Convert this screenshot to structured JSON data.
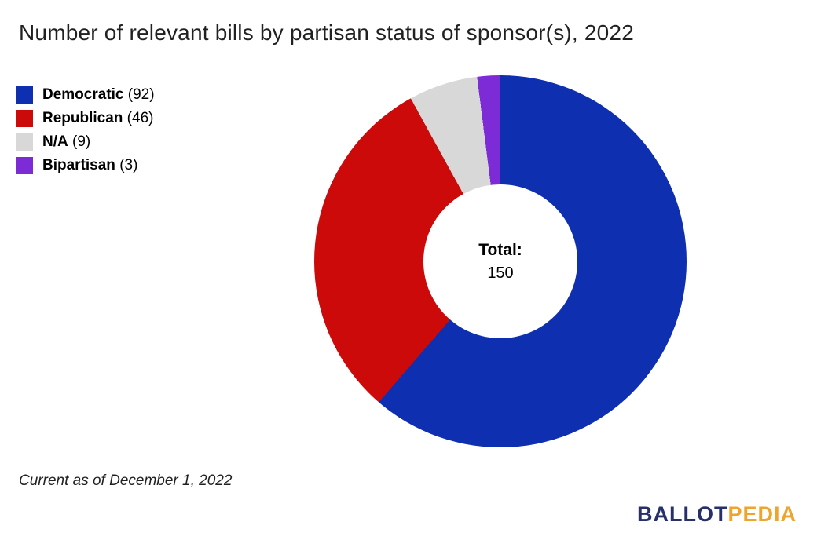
{
  "title": "Number of relevant bills by partisan status of sponsor(s), 2022",
  "legend": {
    "items": [
      {
        "label": "Democratic",
        "count": 92,
        "color": "#0d2fb0"
      },
      {
        "label": "Republican",
        "count": 46,
        "color": "#cc0a0a"
      },
      {
        "label": "N/A",
        "count": 9,
        "color": "#d8d8d8"
      },
      {
        "label": "Bipartisan",
        "count": 3,
        "color": "#7c2bd6"
      }
    ]
  },
  "center": {
    "label": "Total:",
    "value": "150"
  },
  "footer": {
    "note": "Current as of December 1, 2022"
  },
  "logo": {
    "part1": "BALLOT",
    "part2": "PEDIA",
    "color1": "#263069",
    "color2": "#efa42e"
  },
  "chart_data": {
    "type": "pie",
    "subtype": "donut",
    "title": "Number of relevant bills by partisan status of sponsor(s), 2022",
    "categories": [
      "Democratic",
      "Republican",
      "N/A",
      "Bipartisan"
    ],
    "values": [
      92,
      46,
      9,
      3
    ],
    "colors": [
      "#0d2fb0",
      "#cc0a0a",
      "#d8d8d8",
      "#7c2bd6"
    ],
    "total": 150,
    "center_text": [
      "Total:",
      "150"
    ],
    "start_angle_deg": 0,
    "direction": "clockwise",
    "legend_position": "top-left",
    "annotation": "Current as of December 1, 2022"
  }
}
